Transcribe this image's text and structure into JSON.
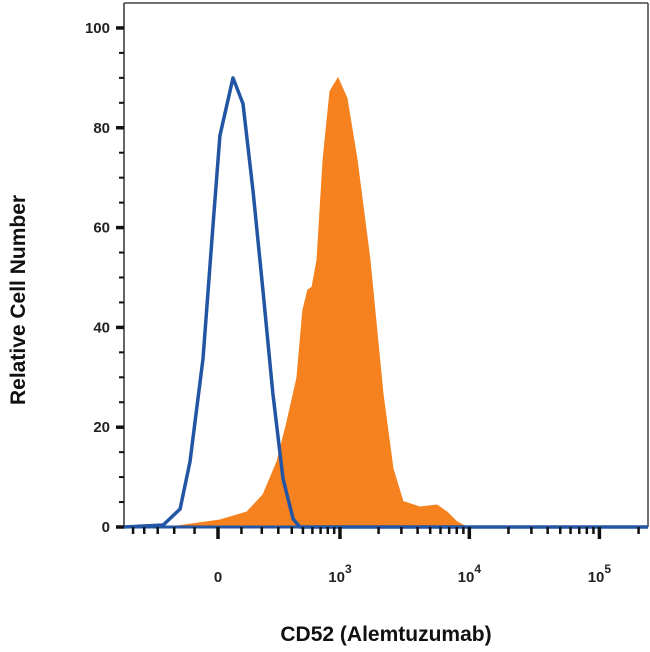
{
  "chart_data": {
    "type": "area",
    "title": "",
    "xlabel": "CD52 (Alemtuzumab)",
    "ylabel": "Relative Cell Number",
    "x_scale": "biexponential",
    "xlim": [
      -620,
      236000
    ],
    "ylim": [
      0,
      105
    ],
    "grid": false,
    "legend": "none",
    "y_ticks": [
      {
        "value": 0,
        "label": "0"
      },
      {
        "value": 20,
        "label": "20"
      },
      {
        "value": 40,
        "label": "40"
      },
      {
        "value": 60,
        "label": "60"
      },
      {
        "value": 80,
        "label": "80"
      },
      {
        "value": 100,
        "label": "100"
      }
    ],
    "x_ticks": [
      {
        "value": 0,
        "base": "0",
        "exp": ""
      },
      {
        "value": 1000,
        "base": "10",
        "exp": "3"
      },
      {
        "value": 10000,
        "base": "10",
        "exp": "4"
      },
      {
        "value": 100000,
        "base": "10",
        "exp": "5"
      }
    ],
    "series": [
      {
        "style": "outline",
        "color": "#2255a4",
        "points": [
          [
            -620,
            0
          ],
          [
            -264,
            0.4
          ],
          [
            -169,
            3.6
          ],
          [
            -121,
            13.1
          ],
          [
            -63,
            33.7
          ],
          [
            -21,
            60.2
          ],
          [
            8,
            78.4
          ],
          [
            63,
            90
          ],
          [
            107,
            84.8
          ],
          [
            155,
            67.2
          ],
          [
            207,
            47.1
          ],
          [
            264,
            26.9
          ],
          [
            333,
            9.7
          ],
          [
            411,
            1.6
          ],
          [
            472,
            0
          ],
          [
            236000,
            0
          ]
        ]
      },
      {
        "style": "filled",
        "color": "#f5821f",
        "points": [
          [
            -224,
            0
          ],
          [
            8,
            1.4
          ],
          [
            125,
            3.0
          ],
          [
            207,
            6.5
          ],
          [
            291,
            13.1
          ],
          [
            363,
            21.2
          ],
          [
            444,
            29.9
          ],
          [
            499,
            43.4
          ],
          [
            549,
            47.5
          ],
          [
            597,
            48.1
          ],
          [
            655,
            53.5
          ],
          [
            733,
            73.7
          ],
          [
            833,
            87.3
          ],
          [
            964,
            90
          ],
          [
            1135,
            85.9
          ],
          [
            1360,
            73.7
          ],
          [
            1715,
            53.5
          ],
          [
            2165,
            26.7
          ],
          [
            2586,
            11.7
          ],
          [
            3090,
            5.1
          ],
          [
            4170,
            4.0
          ],
          [
            5640,
            4.4
          ],
          [
            6740,
            3.0
          ],
          [
            8050,
            1.0
          ],
          [
            9600,
            0
          ]
        ]
      }
    ]
  }
}
